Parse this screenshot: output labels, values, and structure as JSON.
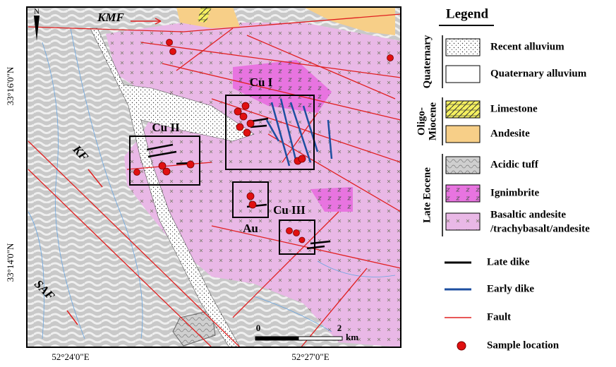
{
  "map": {
    "north": "N",
    "faults": [
      "KMF",
      "KF",
      "SAF"
    ],
    "deposits": [
      "Cu I",
      "Cu II",
      "Au",
      "Cu III"
    ],
    "scale": {
      "start": "0",
      "end": "2",
      "unit": "km"
    },
    "lat_labels": [
      "33°16'0\"N",
      "33°14'0\"N"
    ],
    "lon_labels": [
      "52°24'0\"E",
      "52°27'0\"E"
    ]
  },
  "legend": {
    "title": "Legend",
    "groups": [
      {
        "label": [
          "Quaternary"
        ],
        "items": [
          "Recent alluvium",
          "Quaternary alluvium"
        ]
      },
      {
        "label": [
          "Oligo-",
          "Miocene"
        ],
        "items": [
          "Limestone",
          "Andesite"
        ]
      },
      {
        "label": [
          "Late Eocene"
        ],
        "items": [
          "Acidic tuff",
          "Ignimbrite",
          [
            "Basaltic andesite",
            "/trachybasalt/andesite"
          ]
        ]
      }
    ],
    "lines": [
      "Late dike",
      "Early dike",
      "Fault",
      "Sample location"
    ]
  }
}
